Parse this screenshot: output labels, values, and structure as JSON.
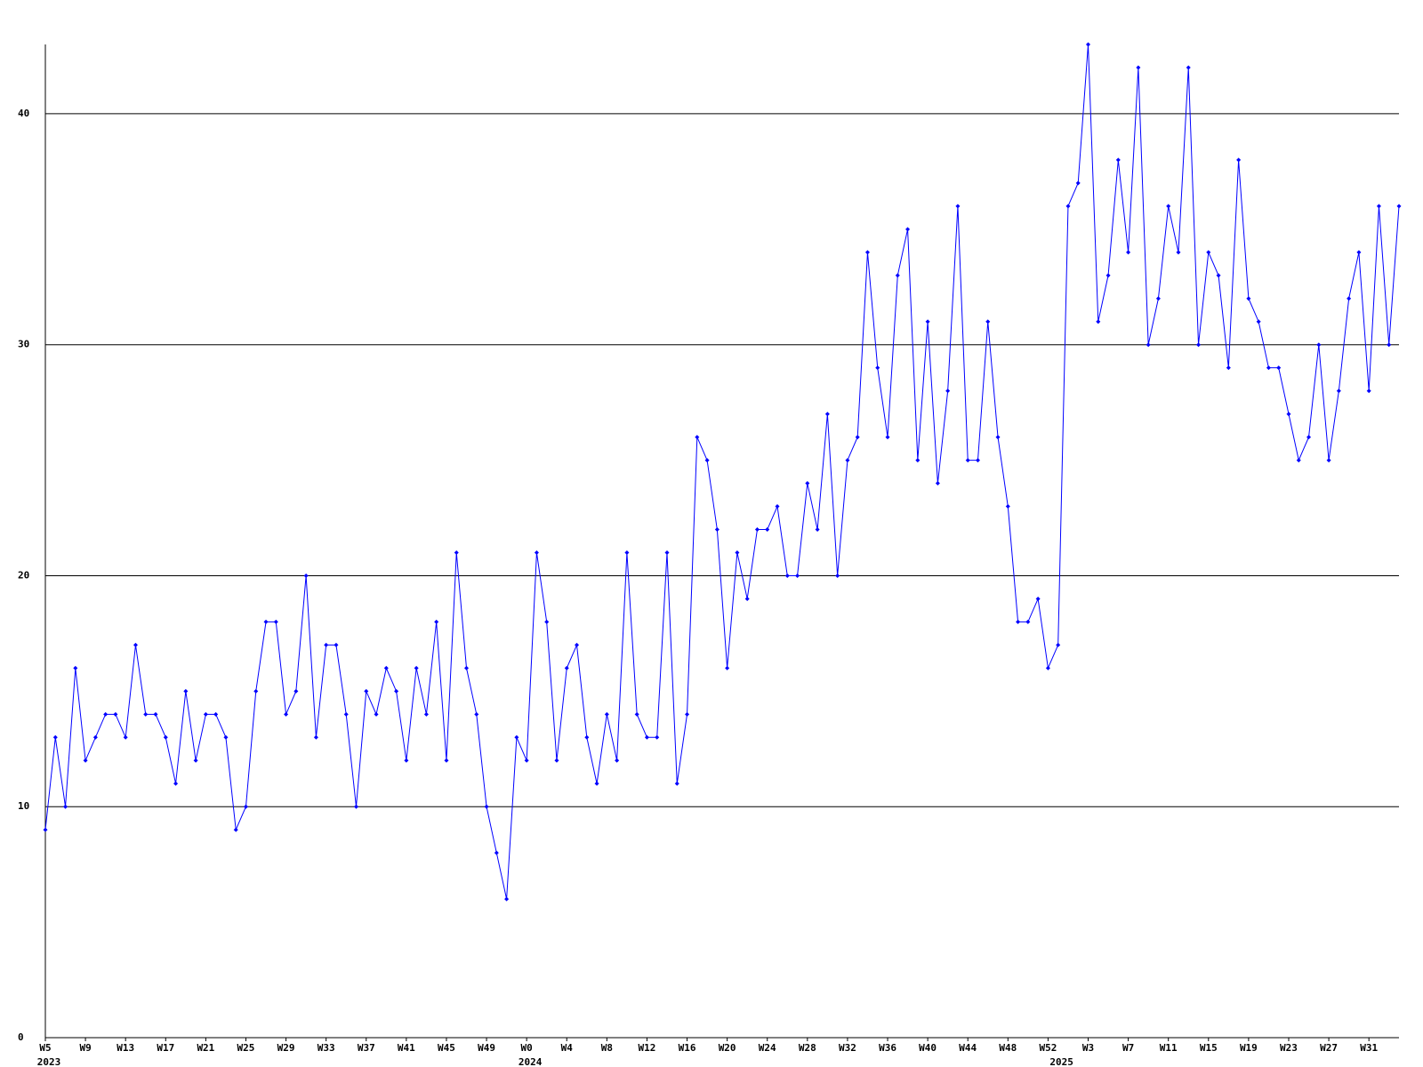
{
  "chart_data": {
    "type": "line",
    "categories": [
      "W5",
      null,
      null,
      null,
      "W9",
      null,
      null,
      null,
      "W13",
      null,
      null,
      null,
      "W17",
      null,
      null,
      null,
      "W21",
      null,
      null,
      null,
      "W25",
      null,
      null,
      null,
      "W29",
      null,
      null,
      null,
      "W33",
      null,
      null,
      null,
      "W37",
      null,
      null,
      null,
      "W41",
      null,
      null,
      null,
      "W45",
      null,
      null,
      null,
      "W49",
      null,
      null,
      null,
      "W0",
      null,
      null,
      null,
      "W4",
      null,
      null,
      null,
      "W8",
      null,
      null,
      null,
      "W12",
      null,
      null,
      null,
      "W16",
      null,
      null,
      null,
      "W20",
      null,
      null,
      null,
      "W24",
      null,
      null,
      null,
      "W28",
      null,
      null,
      null,
      "W32",
      null,
      null,
      null,
      "W36",
      null,
      null,
      null,
      "W40",
      null,
      null,
      null,
      "W44",
      null,
      null,
      null,
      "W48",
      null,
      null,
      null,
      "W52",
      null,
      null,
      null,
      "W3",
      null,
      null,
      null,
      "W7",
      null,
      null,
      null,
      "W11",
      null,
      null,
      null,
      "W15",
      null,
      null,
      null,
      "W19",
      null,
      null,
      null,
      "W23",
      null,
      null,
      null,
      "W27",
      null,
      null,
      null,
      "W31",
      null,
      null,
      null
    ],
    "year_labels": [
      "2023",
      null,
      null,
      null,
      null,
      null,
      null,
      null,
      null,
      null,
      null,
      null,
      null,
      null,
      null,
      null,
      null,
      null,
      null,
      null,
      null,
      null,
      null,
      null,
      null,
      null,
      null,
      null,
      null,
      null,
      null,
      null,
      null,
      null,
      null,
      null,
      null,
      null,
      null,
      null,
      null,
      null,
      null,
      null,
      null,
      null,
      null,
      null,
      "2024",
      null,
      null,
      null,
      null,
      null,
      null,
      null,
      null,
      null,
      null,
      null,
      null,
      null,
      null,
      null,
      null,
      null,
      null,
      null,
      null,
      null,
      null,
      null,
      null,
      null,
      null,
      null,
      null,
      null,
      null,
      null,
      null,
      null,
      null,
      null,
      null,
      null,
      null,
      null,
      null,
      null,
      null,
      null,
      null,
      null,
      null,
      null,
      null,
      null,
      null,
      null,
      null,
      "2025",
      null,
      null,
      null,
      null,
      null,
      null,
      null,
      null,
      null,
      null,
      null,
      null,
      null,
      null,
      null,
      null,
      null,
      null,
      null,
      null,
      null,
      null,
      null,
      null,
      null,
      null,
      null,
      null,
      null,
      null
    ],
    "series": [
      {
        "color": "#0000ff",
        "values": [
          9,
          13,
          10,
          16,
          12,
          13,
          14,
          14,
          13,
          17,
          14,
          14,
          13,
          11,
          15,
          12,
          14,
          14,
          13,
          9,
          10,
          15,
          18,
          18,
          14,
          15,
          20,
          13,
          17,
          17,
          14,
          10,
          15,
          14,
          16,
          15,
          12,
          16,
          14,
          18,
          12,
          21,
          16,
          14,
          10,
          8,
          6,
          13,
          12,
          21,
          18,
          12,
          16,
          17,
          13,
          11,
          14,
          12,
          21,
          14,
          13,
          13,
          21,
          11,
          14,
          26,
          25,
          22,
          16,
          21,
          19,
          22,
          22,
          23,
          20,
          20,
          24,
          22,
          27,
          20,
          25,
          26,
          34,
          29,
          26,
          33,
          35,
          25,
          31,
          24,
          28,
          36,
          25,
          25,
          31,
          26,
          23,
          18,
          18,
          19,
          16,
          17,
          36,
          37,
          43,
          31,
          33,
          38,
          34,
          42,
          30,
          32,
          36,
          34,
          42,
          30,
          34,
          33,
          29,
          38,
          32,
          31,
          29,
          29,
          27,
          25,
          26,
          30,
          25,
          28,
          32,
          34,
          28,
          36,
          30,
          36
        ]
      }
    ],
    "ylim": [
      0,
      43
    ],
    "yticks": [
      0,
      10,
      20,
      30,
      40
    ],
    "grid": true
  }
}
